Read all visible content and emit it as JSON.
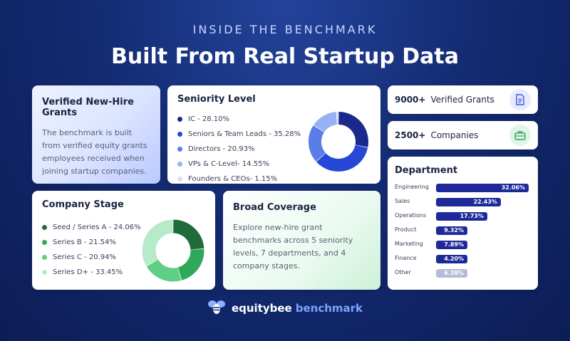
{
  "header": {
    "eyebrow": "INSIDE THE BENCHMARK",
    "title": "Built From Real Startup Data"
  },
  "verified_card": {
    "title": "Verified New-Hire Grants",
    "body": "The benchmark is built from verified equity grants employees received when joining startup companies."
  },
  "stats": [
    {
      "number": "9000+",
      "label": "Verified Grants",
      "icon": "document-icon",
      "icon_bg": "#e6ebff",
      "icon_color": "#3b5bdb"
    },
    {
      "number": "2500+",
      "label": "Companies",
      "icon": "briefcase-icon",
      "icon_bg": "#dff5e6",
      "icon_color": "#2fa85a"
    }
  ],
  "coverage_card": {
    "title": "Broad Coverage",
    "body": "Explore new-hire grant benchmarks across 5 seniority levels, 7 departments, and 4 company stages."
  },
  "brand": {
    "name": "equitybee",
    "suffix": "benchmark"
  },
  "chart_data": [
    {
      "type": "pie",
      "title": "Seniority Level",
      "labels": [
        "IC - 28.10%",
        "Seniors & Team Leads - 35.28%",
        "Directors - 20.93%",
        "VPs & C-Level- 14.55%",
        "Founders & CEOs- 1.15%"
      ],
      "categories": [
        "IC",
        "Seniors & Team Leads",
        "Directors",
        "VPs & C-Level",
        "Founders & CEOs"
      ],
      "values": [
        28.1,
        35.28,
        20.93,
        14.55,
        1.15
      ],
      "colors": [
        "#1a2a8c",
        "#2747d6",
        "#5a7ee8",
        "#98b1f2",
        "#d3ddfa"
      ]
    },
    {
      "type": "bar",
      "title": "Department",
      "categories": [
        "Engineering",
        "Sales",
        "Operations",
        "Product",
        "Marketing",
        "Finance",
        "Other"
      ],
      "values": [
        32.06,
        22.43,
        17.73,
        9.32,
        7.89,
        4.2,
        6.38
      ],
      "value_labels": [
        "32.06%",
        "22.43%",
        "17.73%",
        "9.32%",
        "7.89%",
        "4.20%",
        "6.38%"
      ],
      "colors": [
        "#1f2a9a",
        "#1f2a9a",
        "#1f2a9a",
        "#1f2a9a",
        "#1f2a9a",
        "#1f2a9a",
        "#b3bdd6"
      ]
    },
    {
      "type": "pie",
      "title": "Company Stage",
      "labels": [
        "Seed / Series A - 24.06%",
        "Series B - 21.54%",
        "Series C - 20.94%",
        "Series D+ - 33.45%"
      ],
      "categories": [
        "Seed / Series A",
        "Series B",
        "Series C",
        "Series D+"
      ],
      "values": [
        24.06,
        21.54,
        20.94,
        33.45
      ],
      "colors": [
        "#1f6b3a",
        "#2fa85a",
        "#5fcf86",
        "#b7eac8"
      ]
    }
  ]
}
